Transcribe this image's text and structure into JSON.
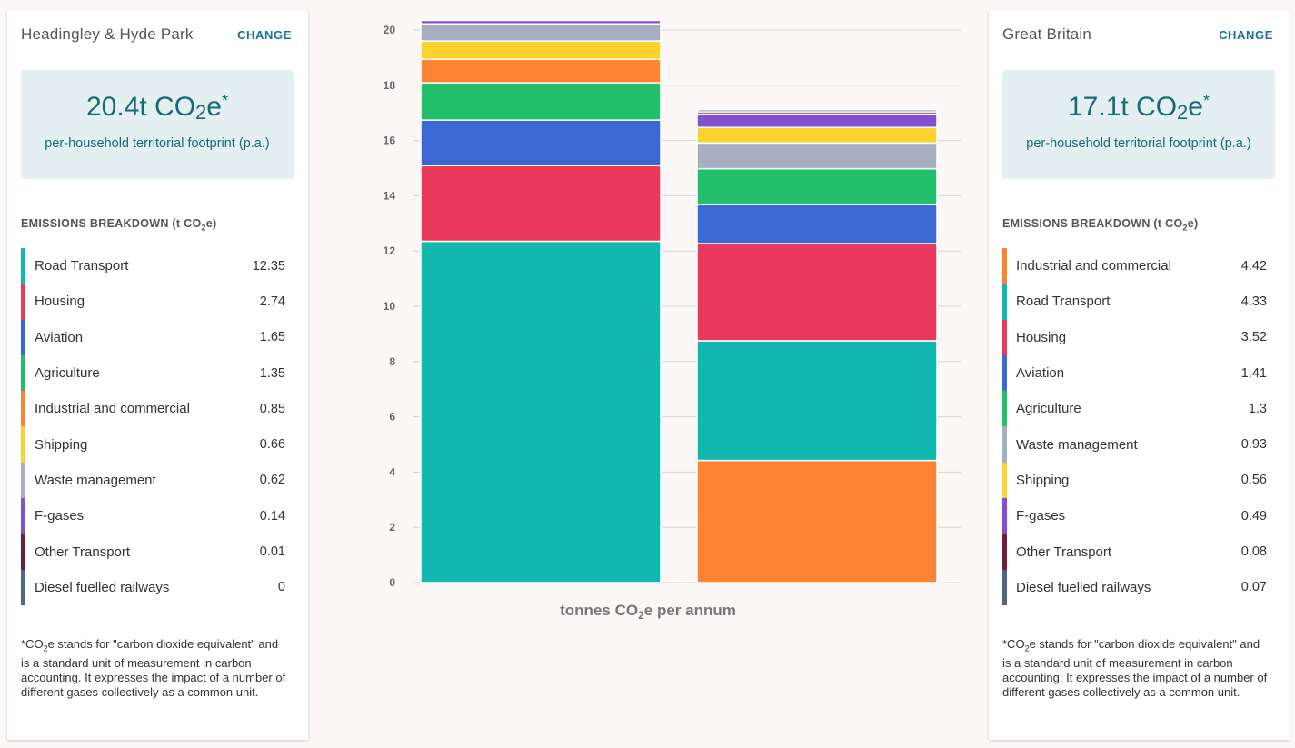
{
  "left": {
    "area_name": "Headingley & Hyde Park",
    "change_label": "CHANGE",
    "footprint_value": "20.4t CO",
    "footprint_sub": "2",
    "footprint_e": "e",
    "footprint_star": "*",
    "footprint_desc": "per-household territorial footprint (p.a.)",
    "breakdown_title": "EMISSIONS BREAKDOWN (t CO",
    "breakdown_title_sub": "2",
    "breakdown_title_end": "e)",
    "items": [
      {
        "label": "Road Transport",
        "value": "12.35",
        "color": "#10b8b0"
      },
      {
        "label": "Housing",
        "value": "2.74",
        "color": "#ea3a5c"
      },
      {
        "label": "Aviation",
        "value": "1.65",
        "color": "#3a69d6"
      },
      {
        "label": "Agriculture",
        "value": "1.35",
        "color": "#22c06a"
      },
      {
        "label": "Industrial and commercial",
        "value": "0.85",
        "color": "#fd8432"
      },
      {
        "label": "Shipping",
        "value": "0.66",
        "color": "#fcd22d"
      },
      {
        "label": "Waste management",
        "value": "0.62",
        "color": "#a6afc2"
      },
      {
        "label": "F-gases",
        "value": "0.14",
        "color": "#8450d0"
      },
      {
        "label": "Other Transport",
        "value": "0.01",
        "color": "#6e1f3d"
      },
      {
        "label": "Diesel fuelled railways",
        "value": "0",
        "color": "#4f6780"
      }
    ],
    "footnote_pre": "*CO",
    "footnote_sub": "2",
    "footnote_post": "e stands for \"carbon dioxide equivalent\" and is a standard unit of measurement in carbon accounting. It expresses the impact of a number of different gases collectively as a common unit."
  },
  "right": {
    "area_name": "Great Britain",
    "change_label": "CHANGE",
    "footprint_value": "17.1t CO",
    "footprint_sub": "2",
    "footprint_e": "e",
    "footprint_star": "*",
    "footprint_desc": "per-household territorial footprint (p.a.)",
    "breakdown_title": "EMISSIONS BREAKDOWN (t CO",
    "breakdown_title_sub": "2",
    "breakdown_title_end": "e)",
    "items": [
      {
        "label": "Industrial and commercial",
        "value": "4.42",
        "color": "#fd8432"
      },
      {
        "label": "Road Transport",
        "value": "4.33",
        "color": "#10b8b0"
      },
      {
        "label": "Housing",
        "value": "3.52",
        "color": "#ea3a5c"
      },
      {
        "label": "Aviation",
        "value": "1.41",
        "color": "#3a69d6"
      },
      {
        "label": "Agriculture",
        "value": "1.3",
        "color": "#22c06a"
      },
      {
        "label": "Waste management",
        "value": "0.93",
        "color": "#a6afc2"
      },
      {
        "label": "Shipping",
        "value": "0.56",
        "color": "#fcd22d"
      },
      {
        "label": "F-gases",
        "value": "0.49",
        "color": "#8450d0"
      },
      {
        "label": "Other Transport",
        "value": "0.08",
        "color": "#6e1f3d"
      },
      {
        "label": "Diesel fuelled railways",
        "value": "0.07",
        "color": "#4f6780"
      }
    ],
    "footnote_pre": "*CO",
    "footnote_sub": "2",
    "footnote_post": "e stands for \"carbon dioxide equivalent\" and is a standard unit of measurement in carbon accounting. It expresses the impact of a number of different gases collectively as a common unit."
  },
  "chart_data": {
    "type": "bar",
    "stacked": true,
    "categories": [
      "Headingley & Hyde Park",
      "Great Britain"
    ],
    "xlabel_pre": "tonnes CO",
    "xlabel_sub": "2",
    "xlabel_post": "e per annum",
    "ylim": [
      0,
      20
    ],
    "yticks": [
      "0",
      "2",
      "4",
      "6",
      "8",
      "10",
      "12",
      "14",
      "16",
      "18",
      "20"
    ],
    "grid": true,
    "series": [
      {
        "name": "Road Transport",
        "color": "#10b8b0",
        "values": [
          12.35,
          4.33
        ]
      },
      {
        "name": "Housing",
        "color": "#ea3a5c",
        "values": [
          2.74,
          3.52
        ]
      },
      {
        "name": "Aviation",
        "color": "#3a69d6",
        "values": [
          1.65,
          1.41
        ]
      },
      {
        "name": "Agriculture",
        "color": "#22c06a",
        "values": [
          1.35,
          1.3
        ]
      },
      {
        "name": "Industrial and commercial",
        "color": "#fd8432",
        "values": [
          0.85,
          4.42
        ]
      },
      {
        "name": "Shipping",
        "color": "#fcd22d",
        "values": [
          0.66,
          0.56
        ]
      },
      {
        "name": "Waste management",
        "color": "#a6afc2",
        "values": [
          0.62,
          0.93
        ]
      },
      {
        "name": "F-gases",
        "color": "#8450d0",
        "values": [
          0.14,
          0.49
        ]
      },
      {
        "name": "Other Transport",
        "color": "#6e1f3d",
        "values": [
          0.01,
          0.08
        ]
      },
      {
        "name": "Diesel fuelled railways",
        "color": "#4f6780",
        "values": [
          0,
          0.07
        ]
      }
    ],
    "stack_order": [
      [
        "Road Transport",
        "Housing",
        "Aviation",
        "Agriculture",
        "Industrial and commercial",
        "Shipping",
        "Waste management",
        "F-gases",
        "Other Transport",
        "Diesel fuelled railways"
      ],
      [
        "Industrial and commercial",
        "Road Transport",
        "Housing",
        "Aviation",
        "Agriculture",
        "Waste management",
        "Shipping",
        "F-gases",
        "Other Transport",
        "Diesel fuelled railways"
      ]
    ]
  }
}
